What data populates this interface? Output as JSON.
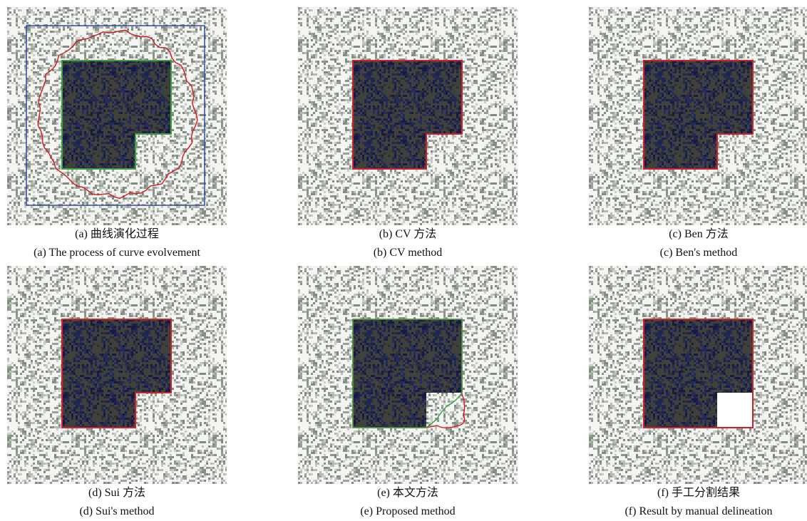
{
  "panels": [
    {
      "caption_zh": "(a) 曲线演化过程",
      "caption_en": "(a) The process of curve evolvement"
    },
    {
      "caption_zh": "(b) CV 方法",
      "caption_en": "(b) CV method"
    },
    {
      "caption_zh": "(c) Ben 方法",
      "caption_en": "(c) Ben's method"
    },
    {
      "caption_zh": "(d) Sui 方法",
      "caption_en": "(d) Sui's method"
    },
    {
      "caption_zh": "(e) 本文方法",
      "caption_en": "(e) Proposed method"
    },
    {
      "caption_zh": "(f) 手工分割结果",
      "caption_en": "(f) Result by manual delineation"
    }
  ]
}
